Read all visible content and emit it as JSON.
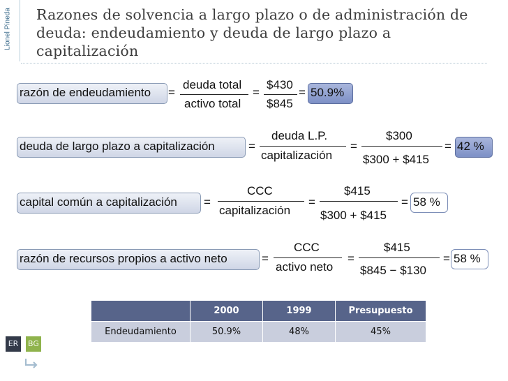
{
  "author": "Lionel Pineda",
  "title": "Razones de solvencia a largo plazo o de administración de deuda: endeudamiento y deuda de largo plazo a capitalización",
  "formulas": [
    {
      "label": "razón de endeudamiento",
      "num1": "deuda total",
      "den1": "activo total",
      "num2": "$430",
      "den2": "$845",
      "result": "50.9%"
    },
    {
      "label": "deuda de largo plazo a capitalización",
      "num1": "deuda L.P.",
      "den1": "capitalización",
      "num2": "$300",
      "den2": "$300 + $415",
      "result": "42 %"
    },
    {
      "label": "capital común a capitalización",
      "num1": "CCC",
      "den1": "capitalización",
      "num2": "$415",
      "den2": "$300 + $415",
      "result": "58 %"
    },
    {
      "label": "razón de recursos propios a activo neto",
      "num1": "CCC",
      "den1": "activo neto",
      "num2": "$415",
      "den2": "$845 − $130",
      "result": "58 %"
    }
  ],
  "eq": "=",
  "table": {
    "headers": [
      "",
      "2000",
      "1999",
      "Presupuesto"
    ],
    "rows": [
      [
        "Endeudamiento",
        "50.9%",
        "48%",
        "45%"
      ]
    ]
  },
  "nav": {
    "er": "ER",
    "bg": "BG",
    "return_icon": "return-arrow-icon"
  }
}
